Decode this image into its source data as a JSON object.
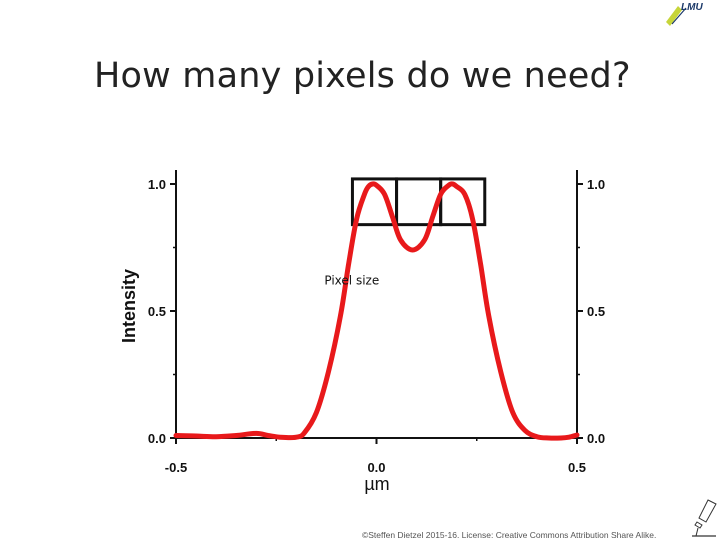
{
  "slide": {
    "title": "How many pixels do we need?",
    "footer": "©Steffen Dietzel 2015-16. License: Creative Commons Attribution Share Alike.",
    "logo": {
      "text": "LMU",
      "icon": "university-logo"
    },
    "corner_icon": "microscope-icon"
  },
  "chart_data": {
    "type": "line",
    "ylabel": "Intensity",
    "xlabel": "µm",
    "xlim": [
      -0.5,
      0.5
    ],
    "ylim": [
      0.0,
      1.0
    ],
    "x_ticks": [
      "-0.5",
      "0.0",
      "0.5"
    ],
    "y_ticks": [
      "0.0",
      "0.5",
      "1.0"
    ],
    "right_y_ticks": [
      "0.0",
      "0.5",
      "1.0"
    ],
    "line_color": "#e8191b",
    "series": [
      {
        "points": [
          [
            -0.5,
            0.01
          ],
          [
            -0.45,
            0.008
          ],
          [
            -0.4,
            0.005
          ],
          [
            -0.35,
            0.01
          ],
          [
            -0.3,
            0.018
          ],
          [
            -0.27,
            0.01
          ],
          [
            -0.24,
            0.003
          ],
          [
            -0.2,
            0.003
          ],
          [
            -0.18,
            0.02
          ],
          [
            -0.15,
            0.1
          ],
          [
            -0.12,
            0.26
          ],
          [
            -0.09,
            0.48
          ],
          [
            -0.07,
            0.68
          ],
          [
            -0.05,
            0.86
          ],
          [
            -0.03,
            0.96
          ],
          [
            -0.02,
            0.99
          ],
          [
            -0.01,
            1.0
          ],
          [
            0.0,
            0.995
          ],
          [
            0.02,
            0.96
          ],
          [
            0.04,
            0.87
          ],
          [
            0.06,
            0.78
          ],
          [
            0.09,
            0.74
          ],
          [
            0.12,
            0.78
          ],
          [
            0.14,
            0.87
          ],
          [
            0.16,
            0.96
          ],
          [
            0.18,
            0.995
          ],
          [
            0.19,
            1.0
          ],
          [
            0.2,
            0.99
          ],
          [
            0.22,
            0.96
          ],
          [
            0.24,
            0.86
          ],
          [
            0.26,
            0.68
          ],
          [
            0.28,
            0.48
          ],
          [
            0.31,
            0.26
          ],
          [
            0.34,
            0.1
          ],
          [
            0.37,
            0.03
          ],
          [
            0.4,
            0.005
          ],
          [
            0.43,
            0.0
          ],
          [
            0.46,
            0.0
          ],
          [
            0.48,
            0.003
          ],
          [
            0.5,
            0.012
          ]
        ]
      }
    ],
    "annotations": [
      {
        "text": "Pixel size",
        "x": -0.12,
        "y": 0.62
      }
    ],
    "pixel_boxes": {
      "count": 3,
      "x_start": -0.06,
      "x_end": 0.27,
      "y_bottom": 0.84,
      "y_top": 1.02
    }
  }
}
